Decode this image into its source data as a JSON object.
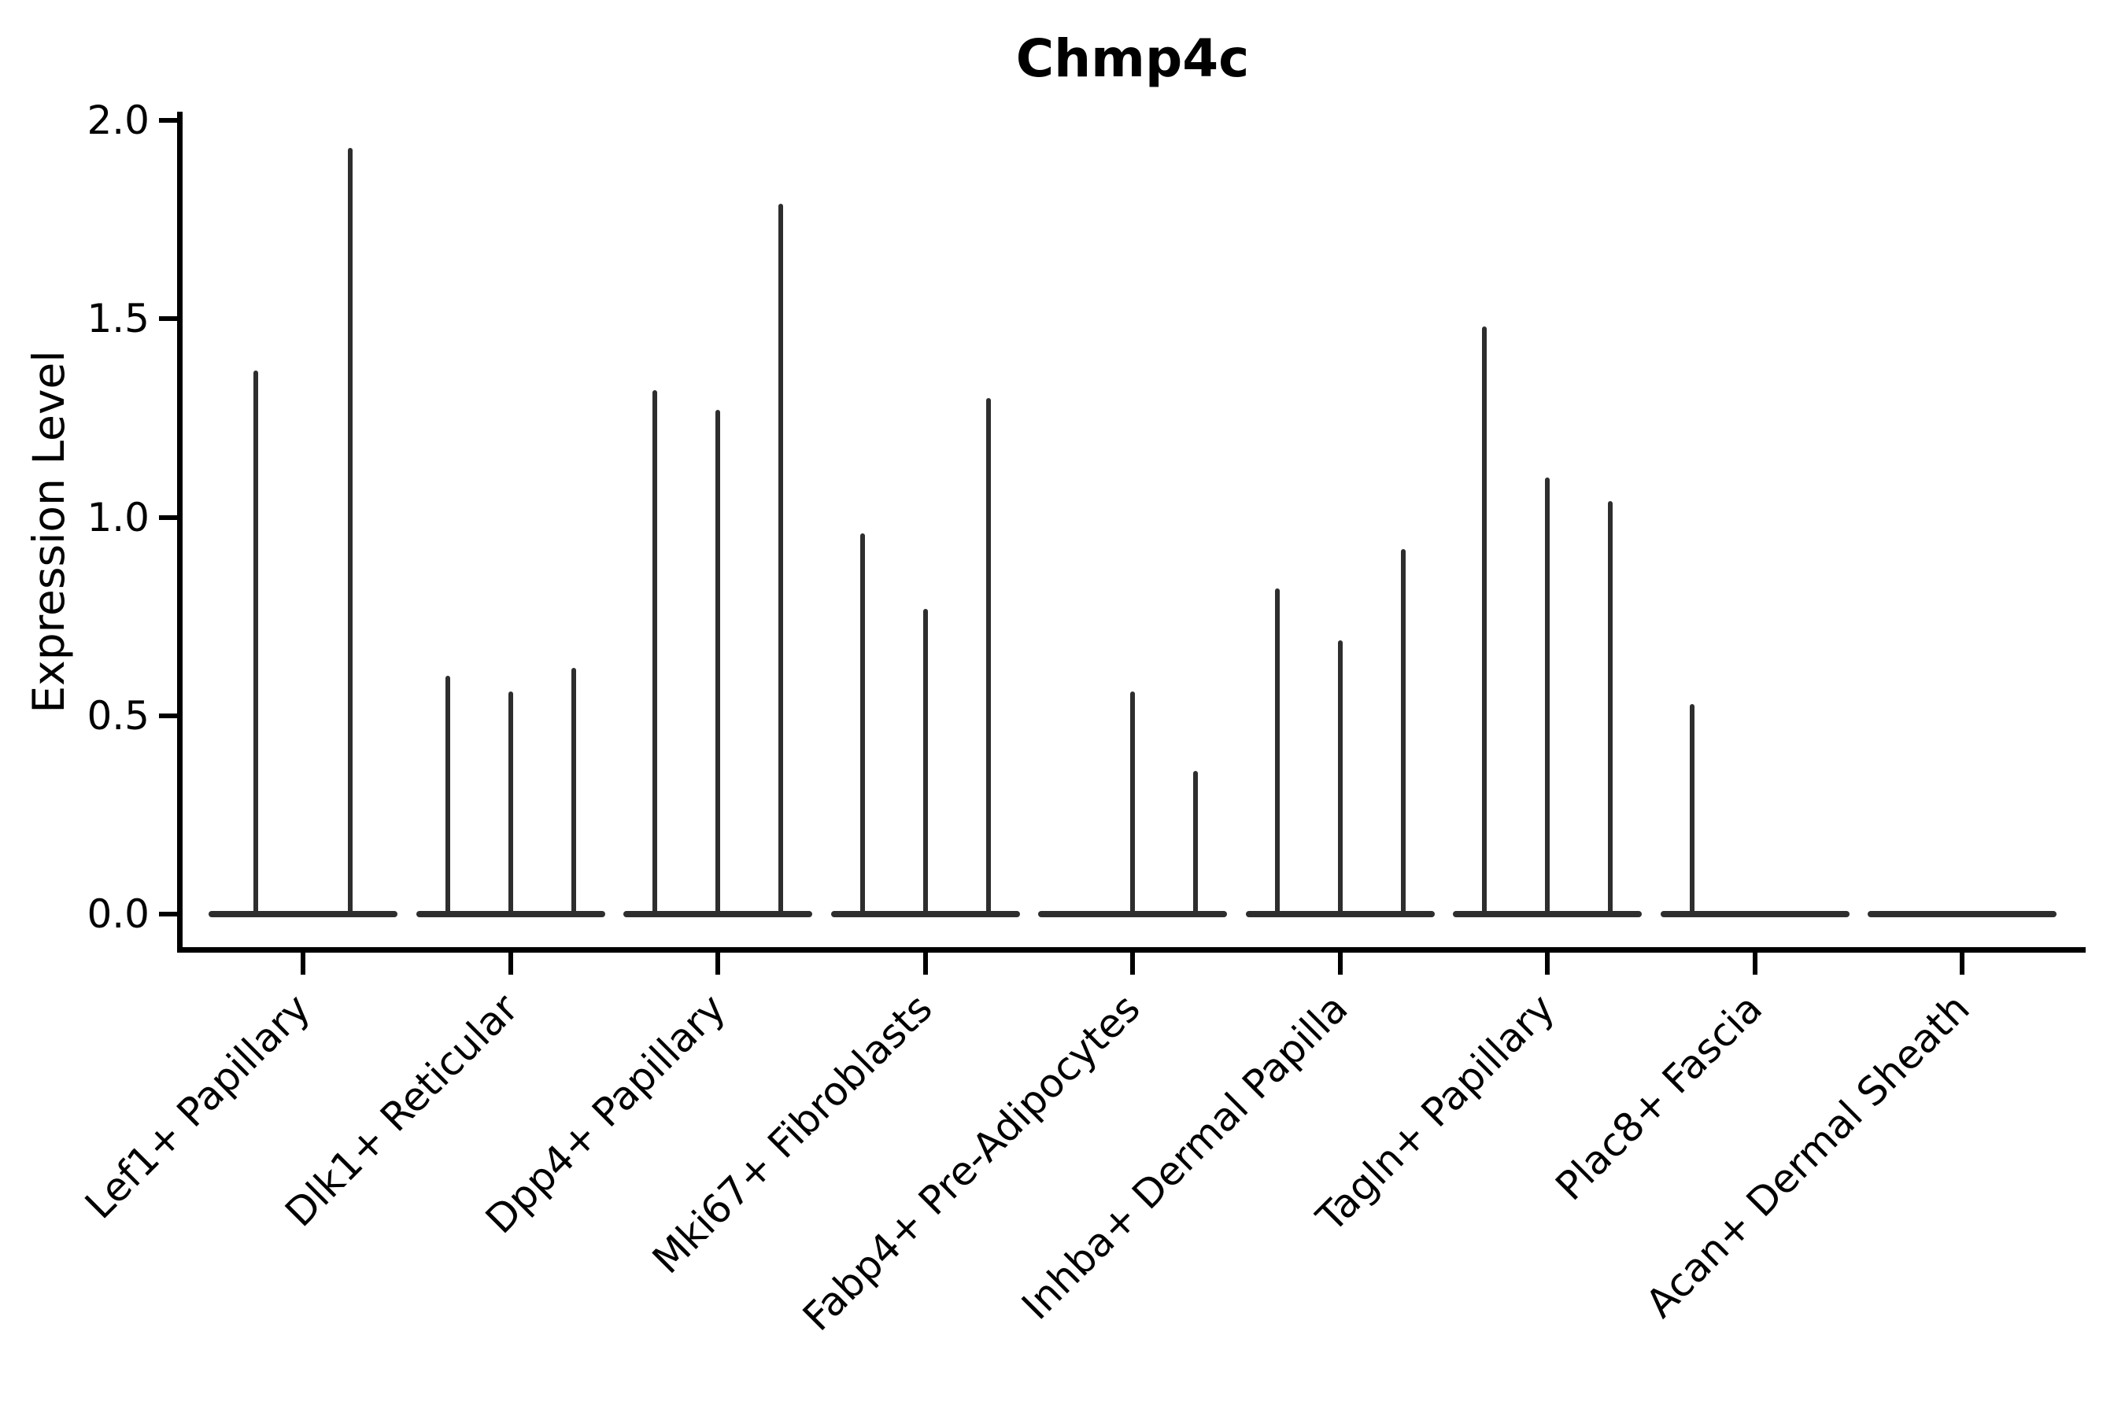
{
  "title": "Chmp4c",
  "y_axis": {
    "label": "Expression Level",
    "tick_labels": [
      "0.0",
      "0.5",
      "1.0",
      "1.5",
      "2.0"
    ],
    "tick_values": [
      0.0,
      0.5,
      1.0,
      1.5,
      2.0
    ],
    "range": [
      0.0,
      2.0
    ]
  },
  "x_axis": {
    "labels": [
      "Lef1+ Papillary",
      "Dlk1+ Reticular",
      "Dpp4+ Papillary",
      "Mki67+ Fibroblasts",
      "Fabp4+ Pre-Adipocytes",
      "Inhba+ Dermal Papilla",
      "Tagln+ Papillary",
      "Plac8+ Fascia",
      "Acan+ Dermal Sheath"
    ],
    "label_rotation_deg": 45
  },
  "chart_data": {
    "type": "violin",
    "title": "Chmp4c",
    "xlabel": "",
    "ylabel": "Expression Level",
    "ylim": [
      0.0,
      2.0
    ],
    "yticks": [
      0.0,
      0.5,
      1.0,
      1.5,
      2.0
    ],
    "grid": false,
    "legend": false,
    "description": "Thin violin plot; each category holds 2-3 narrow violins collapsed to spikes on a flat zero baseline. 'peaks' lists the max expression reached by each violin in order left-to-right; null means the violin is completely flat at 0.",
    "categories": [
      "Lef1+ Papillary",
      "Dlk1+ Reticular",
      "Dpp4+ Papillary",
      "Mki67+ Fibroblasts",
      "Fabp4+ Pre-Adipocytes",
      "Inhba+ Dermal Papilla",
      "Tagln+ Papillary",
      "Plac8+ Fascia",
      "Acan+ Dermal Sheath"
    ],
    "violins": [
      {
        "category": "Lef1+ Papillary",
        "peaks": [
          1.37,
          1.93
        ]
      },
      {
        "category": "Dlk1+ Reticular",
        "peaks": [
          0.6,
          0.56,
          0.62
        ]
      },
      {
        "category": "Dpp4+ Papillary",
        "peaks": [
          1.32,
          1.27,
          1.79
        ]
      },
      {
        "category": "Mki67+ Fibroblasts",
        "peaks": [
          0.96,
          0.77,
          1.3
        ]
      },
      {
        "category": "Fabp4+ Pre-Adipocytes",
        "peaks": [
          null,
          0.56,
          0.36
        ]
      },
      {
        "category": "Inhba+ Dermal Papilla",
        "peaks": [
          0.82,
          0.69,
          0.92
        ]
      },
      {
        "category": "Tagln+ Papillary",
        "peaks": [
          1.48,
          1.1,
          1.04
        ]
      },
      {
        "category": "Plac8+ Fascia",
        "peaks": [
          0.53,
          null,
          null
        ]
      },
      {
        "category": "Acan+ Dermal Sheath",
        "peaks": [
          null,
          null,
          null
        ]
      }
    ],
    "colors": {
      "violin_stroke": "#2e2e2e",
      "spine": "#000000",
      "text": "#000000",
      "background": "#ffffff"
    }
  }
}
